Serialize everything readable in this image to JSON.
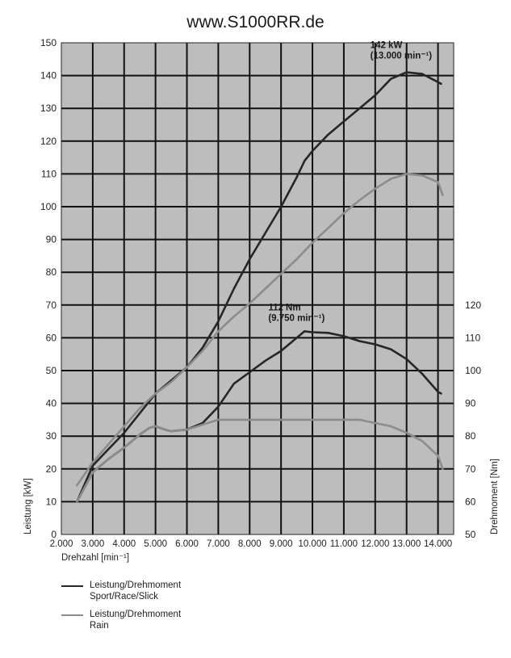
{
  "page": {
    "title": "www.S1000RR.de"
  },
  "chart_data": {
    "type": "line",
    "x_axis": {
      "label": "Drehzahl [min⁻¹]",
      "range": [
        2000,
        14500
      ],
      "ticks": [
        2000,
        3000,
        4000,
        5000,
        6000,
        7000,
        8000,
        9000,
        10000,
        11000,
        12000,
        13000,
        14000
      ],
      "tick_labels": [
        "2.000",
        "3.000",
        "4.000",
        "5.000",
        "6.000",
        "7.000",
        "8.000",
        "9.000",
        "10.000",
        "11.000",
        "12.000",
        "13.000",
        "14.000"
      ]
    },
    "y_left": {
      "label": "Leistung [kW]",
      "range": [
        0,
        150
      ],
      "ticks": [
        0,
        10,
        20,
        30,
        40,
        50,
        60,
        70,
        80,
        90,
        100,
        110,
        120,
        130,
        140,
        150
      ]
    },
    "y_right": {
      "label": "Drehmoment [Nm]",
      "range": [
        50,
        200
      ],
      "ticks": [
        50,
        60,
        70,
        80,
        90,
        100,
        110,
        120
      ]
    },
    "grid": true,
    "colors": {
      "plot_bg": "#bdbdbd",
      "grid": "#111111",
      "sport": "#262626",
      "rain": "#8c8c8c"
    },
    "series": [
      {
        "name": "Leistung/Drehmoment Sport/Race/Slick",
        "group": "sport",
        "quantity": "power",
        "axis": "left",
        "color": "#262626",
        "points": [
          [
            2500,
            10
          ],
          [
            3000,
            21
          ],
          [
            3500,
            26
          ],
          [
            4000,
            31
          ],
          [
            4500,
            37
          ],
          [
            5000,
            43
          ],
          [
            5500,
            47
          ],
          [
            6000,
            51
          ],
          [
            6500,
            57
          ],
          [
            7000,
            65
          ],
          [
            7500,
            75
          ],
          [
            8000,
            84
          ],
          [
            8500,
            92
          ],
          [
            9000,
            100
          ],
          [
            9500,
            109
          ],
          [
            9750,
            114
          ],
          [
            10000,
            117
          ],
          [
            10500,
            122
          ],
          [
            11000,
            126
          ],
          [
            11500,
            130
          ],
          [
            12000,
            134
          ],
          [
            12500,
            139
          ],
          [
            13000,
            141
          ],
          [
            13500,
            140.5
          ],
          [
            14000,
            138
          ],
          [
            14100,
            137.5
          ]
        ]
      },
      {
        "name": "Leistung/Drehmoment Sport/Race/Slick",
        "group": "sport",
        "quantity": "torque",
        "axis": "right",
        "color": "#262626",
        "points": [
          [
            2500,
            60
          ],
          [
            3000,
            69
          ],
          [
            3500,
            73
          ],
          [
            4000,
            76.5
          ],
          [
            4500,
            80.5
          ],
          [
            4800,
            82.5
          ],
          [
            5000,
            83
          ],
          [
            5300,
            82
          ],
          [
            5500,
            81.5
          ],
          [
            6000,
            82
          ],
          [
            6500,
            84
          ],
          [
            7000,
            89
          ],
          [
            7500,
            96
          ],
          [
            8000,
            99.5
          ],
          [
            8500,
            103
          ],
          [
            9000,
            106
          ],
          [
            9500,
            110
          ],
          [
            9750,
            112
          ],
          [
            10000,
            111.7
          ],
          [
            10500,
            111.5
          ],
          [
            11000,
            110.5
          ],
          [
            11500,
            109
          ],
          [
            12000,
            108
          ],
          [
            12500,
            106.5
          ],
          [
            13000,
            103.5
          ],
          [
            13500,
            99
          ],
          [
            14000,
            93.5
          ],
          [
            14100,
            93
          ]
        ]
      },
      {
        "name": "Leistung/Drehmoment Rain",
        "group": "rain",
        "quantity": "power",
        "axis": "left",
        "color": "#8c8c8c",
        "points": [
          [
            2500,
            15
          ],
          [
            3000,
            22
          ],
          [
            3500,
            27.5
          ],
          [
            4000,
            33
          ],
          [
            4500,
            38.5
          ],
          [
            5000,
            43
          ],
          [
            5500,
            46.5
          ],
          [
            6000,
            51
          ],
          [
            6500,
            56
          ],
          [
            7000,
            62
          ],
          [
            7500,
            66.5
          ],
          [
            8000,
            70.5
          ],
          [
            8500,
            75
          ],
          [
            9000,
            79.5
          ],
          [
            9500,
            84
          ],
          [
            10000,
            89
          ],
          [
            10500,
            93.5
          ],
          [
            11000,
            98
          ],
          [
            11500,
            102
          ],
          [
            12000,
            105.5
          ],
          [
            12500,
            108.5
          ],
          [
            13000,
            110
          ],
          [
            13500,
            109.5
          ],
          [
            14000,
            107.5
          ],
          [
            14150,
            103.5
          ]
        ]
      },
      {
        "name": "Leistung/Drehmoment Rain",
        "group": "rain",
        "quantity": "torque",
        "axis": "right",
        "color": "#8c8c8c",
        "points": [
          [
            2500,
            60
          ],
          [
            3000,
            69
          ],
          [
            3500,
            73
          ],
          [
            4000,
            76.5
          ],
          [
            4500,
            80.5
          ],
          [
            4800,
            82.5
          ],
          [
            5000,
            83
          ],
          [
            5300,
            82
          ],
          [
            5500,
            81.5
          ],
          [
            6000,
            82
          ],
          [
            6500,
            83.5
          ],
          [
            7000,
            85
          ],
          [
            8000,
            85
          ],
          [
            9000,
            85
          ],
          [
            10000,
            85
          ],
          [
            11000,
            85
          ],
          [
            11500,
            85
          ],
          [
            12000,
            84
          ],
          [
            12500,
            83
          ],
          [
            13000,
            81
          ],
          [
            13500,
            78.5
          ],
          [
            14000,
            74
          ],
          [
            14150,
            70
          ]
        ]
      }
    ],
    "annotations": [
      {
        "line1": "142 kW",
        "line2": "(13.000 min⁻¹)",
        "x": 13000,
        "y": 142,
        "axis": "left"
      },
      {
        "line1": "112 Nm",
        "line2": "(9.750 min⁻¹)",
        "x": 9750,
        "y": 112,
        "axis": "right"
      }
    ],
    "legend": {
      "placement": "bottom-left",
      "entries": [
        {
          "line1": "Leistung/Drehmoment",
          "line2": "Sport/Race/Slick",
          "color": "#262626"
        },
        {
          "line1": "Leistung/Drehmoment",
          "line2": "Rain",
          "color": "#8c8c8c"
        }
      ]
    }
  }
}
